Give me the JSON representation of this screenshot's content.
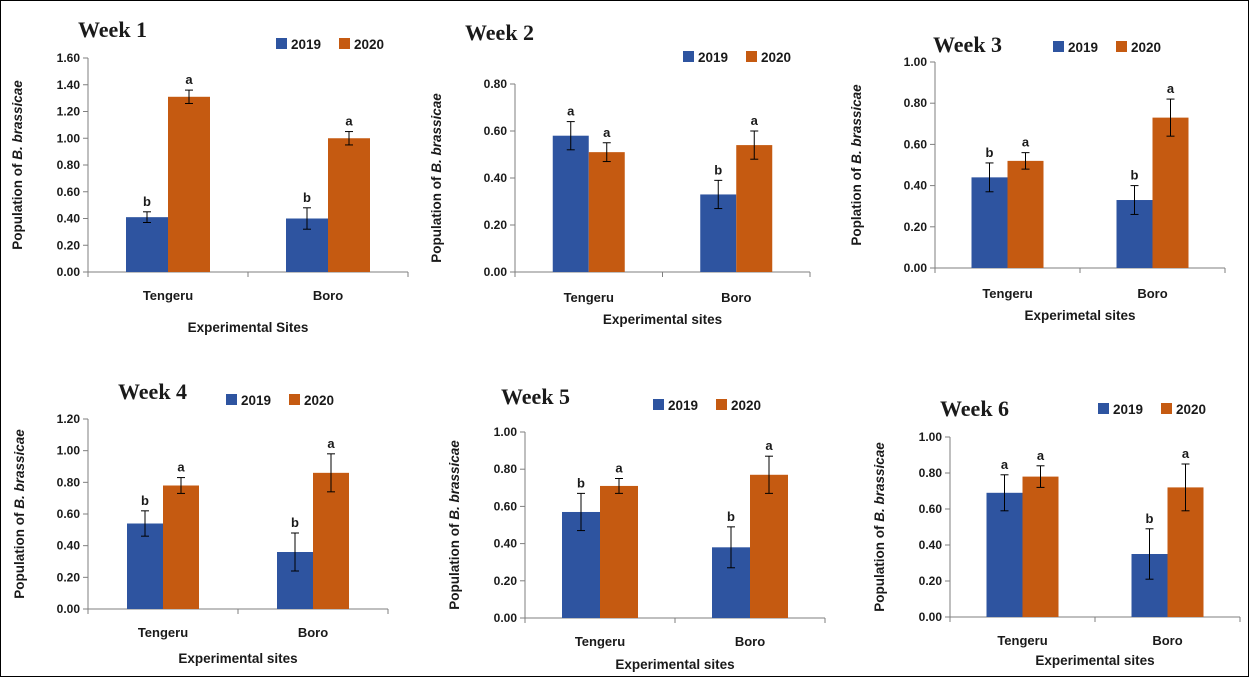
{
  "colors": {
    "series_2019": "#2e54a0",
    "series_2020": "#c55a11",
    "axis": "#7f7f7f",
    "error_bar": "#000000"
  },
  "chart_data": [
    {
      "type": "bar",
      "title": "Week 1",
      "xlabel": "Experimental Sites",
      "ylabel_prefix": "Population of ",
      "ylabel_species": "B. brassicae",
      "categories": [
        "Tengeru",
        "Boro"
      ],
      "yticks": [
        "0.00",
        "0.20",
        "0.40",
        "0.60",
        "0.80",
        "1.00",
        "1.20",
        "1.40",
        "1.60"
      ],
      "ylim": [
        0,
        1.6
      ],
      "legend": "top-right",
      "grid": false,
      "series": [
        {
          "name": "2019",
          "values": [
            0.41,
            0.4
          ],
          "errors": [
            0.04,
            0.08
          ],
          "letters": [
            "b",
            "b"
          ]
        },
        {
          "name": "2020",
          "values": [
            1.31,
            1.0
          ],
          "errors": [
            0.05,
            0.05
          ],
          "letters": [
            "a",
            "a"
          ]
        }
      ]
    },
    {
      "type": "bar",
      "title": "Week 2",
      "xlabel": "Experimental sites",
      "ylabel_prefix": "Population of ",
      "ylabel_species": "B. brassicae",
      "categories": [
        "Tengeru",
        "Boro"
      ],
      "yticks": [
        "0.00",
        "0.20",
        "0.40",
        "0.60",
        "0.80"
      ],
      "ylim": [
        0,
        0.8
      ],
      "legend": "top-right",
      "grid": false,
      "series": [
        {
          "name": "2019",
          "values": [
            0.58,
            0.33
          ],
          "errors": [
            0.06,
            0.06
          ],
          "letters": [
            "a",
            "b"
          ]
        },
        {
          "name": "2020",
          "values": [
            0.51,
            0.54
          ],
          "errors": [
            0.04,
            0.06
          ],
          "letters": [
            "a",
            "a"
          ]
        }
      ]
    },
    {
      "type": "bar",
      "title": "Week 3",
      "xlabel": "Experimetal sites",
      "ylabel_prefix": "Poplation of ",
      "ylabel_species": "B. brassicae",
      "categories": [
        "Tengeru",
        "Boro"
      ],
      "yticks": [
        "0.00",
        "0.20",
        "0.40",
        "0.60",
        "0.80",
        "1.00"
      ],
      "ylim": [
        0,
        1.0
      ],
      "legend": "top-right",
      "grid": false,
      "series": [
        {
          "name": "2019",
          "values": [
            0.44,
            0.33
          ],
          "errors": [
            0.07,
            0.07
          ],
          "letters": [
            "b",
            "b"
          ]
        },
        {
          "name": "2020",
          "values": [
            0.52,
            0.73
          ],
          "errors": [
            0.04,
            0.09
          ],
          "letters": [
            "a",
            "a"
          ]
        }
      ]
    },
    {
      "type": "bar",
      "title": "Week 4",
      "xlabel": "Experimental sites",
      "ylabel_prefix": "Population of ",
      "ylabel_species": "B. brassicae",
      "categories": [
        "Tengeru",
        "Boro"
      ],
      "yticks": [
        "0.00",
        "0.20",
        "0.40",
        "0.60",
        "0.80",
        "1.00",
        "1.20"
      ],
      "ylim": [
        0,
        1.2
      ],
      "legend": "top-right",
      "grid": false,
      "series": [
        {
          "name": "2019",
          "values": [
            0.54,
            0.36
          ],
          "errors": [
            0.08,
            0.12
          ],
          "letters": [
            "b",
            "b"
          ]
        },
        {
          "name": "2020",
          "values": [
            0.78,
            0.86
          ],
          "errors": [
            0.05,
            0.12
          ],
          "letters": [
            "a",
            "a"
          ]
        }
      ]
    },
    {
      "type": "bar",
      "title": "Week 5",
      "xlabel": "Experimental sites",
      "ylabel_prefix": "Population of ",
      "ylabel_species": "B. brassicae",
      "categories": [
        "Tengeru",
        "Boro"
      ],
      "yticks": [
        "0.00",
        "0.20",
        "0.40",
        "0.60",
        "0.80",
        "1.00"
      ],
      "ylim": [
        0,
        1.0
      ],
      "legend": "top-right",
      "grid": false,
      "series": [
        {
          "name": "2019",
          "values": [
            0.57,
            0.38
          ],
          "errors": [
            0.1,
            0.11
          ],
          "letters": [
            "b",
            "b"
          ]
        },
        {
          "name": "2020",
          "values": [
            0.71,
            0.77
          ],
          "errors": [
            0.04,
            0.1
          ],
          "letters": [
            "a",
            "a"
          ]
        }
      ]
    },
    {
      "type": "bar",
      "title": "Week 6",
      "xlabel": "Experimental sites",
      "ylabel_prefix": "Population of ",
      "ylabel_species": "B. brassicae",
      "categories": [
        "Tengeru",
        "Boro"
      ],
      "yticks": [
        "0.00",
        "0.20",
        "0.40",
        "0.60",
        "0.80",
        "1.00"
      ],
      "ylim": [
        0,
        1.0
      ],
      "legend": "top-right",
      "grid": false,
      "series": [
        {
          "name": "2019",
          "values": [
            0.69,
            0.35
          ],
          "errors": [
            0.1,
            0.14
          ],
          "letters": [
            "a",
            "b"
          ]
        },
        {
          "name": "2020",
          "values": [
            0.78,
            0.72
          ],
          "errors": [
            0.06,
            0.13
          ],
          "letters": [
            "a",
            "a"
          ]
        }
      ]
    }
  ]
}
